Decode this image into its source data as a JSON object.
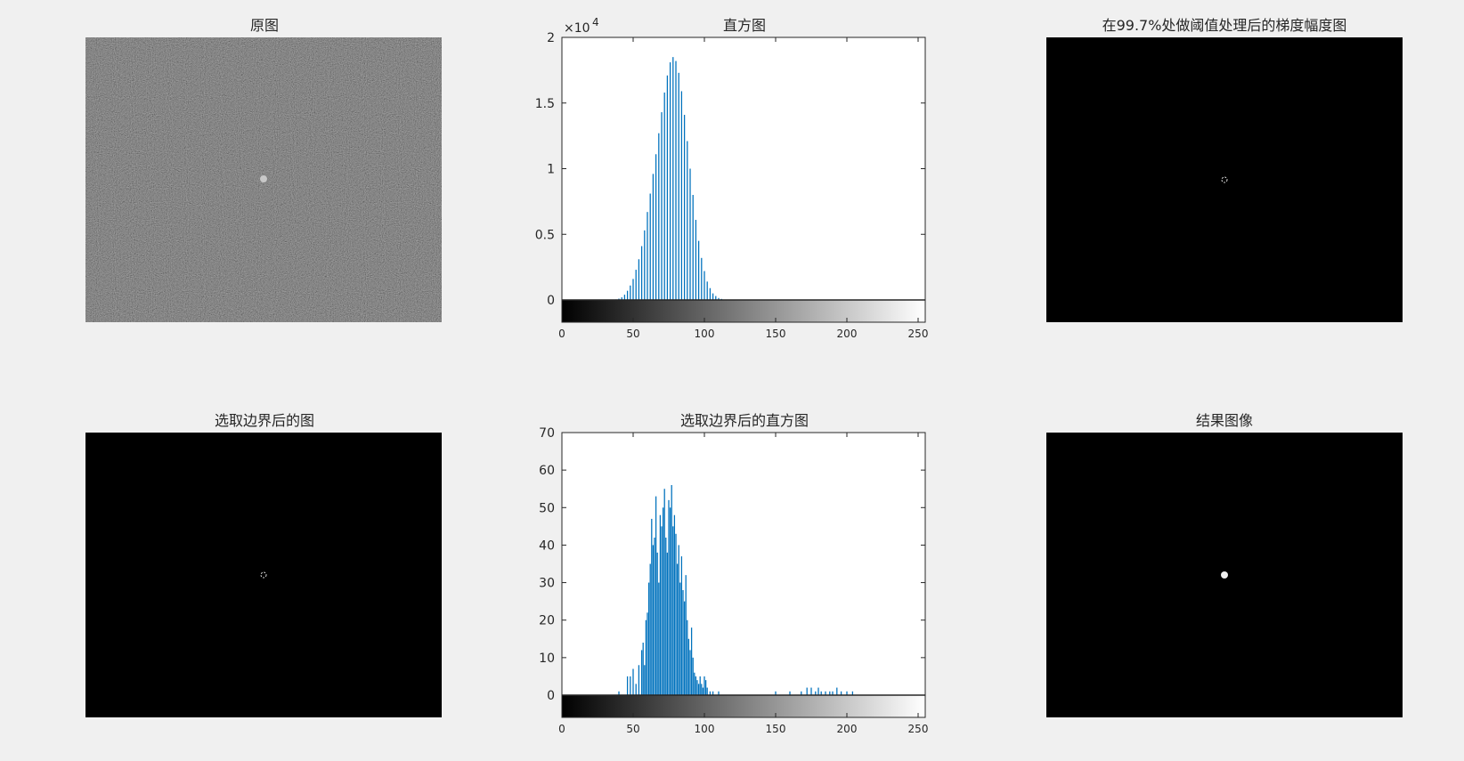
{
  "figure": {
    "background": "#f0f0f0",
    "bar_color": "#0072bd"
  },
  "panels": {
    "original": {
      "title": "原图"
    },
    "threshold": {
      "title": "在99.7%处做阈值处理后的梯度幅度图"
    },
    "boundary": {
      "title": "选取边界后的图"
    },
    "result": {
      "title": "结果图像"
    }
  },
  "chart_data": [
    {
      "type": "bar",
      "title": "直方图",
      "xlabel": "",
      "ylabel": "",
      "xlim": [
        0,
        255
      ],
      "ylim": [
        0,
        20000
      ],
      "exponent_label": "×10",
      "exponent_power": "4",
      "y_ticks": [
        {
          "value": 0,
          "label": "0"
        },
        {
          "value": 5000,
          "label": "0.5"
        },
        {
          "value": 10000,
          "label": "1"
        },
        {
          "value": 15000,
          "label": "1.5"
        },
        {
          "value": 20000,
          "label": "2"
        }
      ],
      "x_ticks": [
        {
          "value": 0,
          "label": "0"
        },
        {
          "value": 50,
          "label": "50"
        },
        {
          "value": 100,
          "label": "100"
        },
        {
          "value": 150,
          "label": "150"
        },
        {
          "value": 200,
          "label": "200"
        },
        {
          "value": 250,
          "label": "250"
        }
      ],
      "colorbar": "grayscale",
      "x": [
        38,
        40,
        42,
        44,
        46,
        48,
        50,
        52,
        54,
        56,
        58,
        60,
        62,
        64,
        66,
        68,
        70,
        72,
        74,
        76,
        78,
        80,
        82,
        84,
        86,
        88,
        90,
        92,
        94,
        96,
        98,
        100,
        102,
        104,
        106,
        108,
        110,
        112,
        114
      ],
      "values": [
        40,
        100,
        200,
        400,
        700,
        1100,
        1600,
        2300,
        3100,
        4100,
        5300,
        6700,
        8100,
        9600,
        11100,
        12700,
        14300,
        15800,
        17100,
        18100,
        18500,
        18200,
        17300,
        15900,
        14100,
        12100,
        10000,
        8000,
        6100,
        4500,
        3200,
        2200,
        1400,
        900,
        500,
        300,
        150,
        80,
        30
      ]
    },
    {
      "type": "bar",
      "title": "选取边界后的直方图",
      "xlabel": "",
      "ylabel": "",
      "xlim": [
        0,
        255
      ],
      "ylim": [
        0,
        70
      ],
      "y_ticks": [
        {
          "value": 0,
          "label": "0"
        },
        {
          "value": 10,
          "label": "10"
        },
        {
          "value": 20,
          "label": "20"
        },
        {
          "value": 30,
          "label": "30"
        },
        {
          "value": 40,
          "label": "40"
        },
        {
          "value": 50,
          "label": "50"
        },
        {
          "value": 60,
          "label": "60"
        },
        {
          "value": 70,
          "label": "70"
        }
      ],
      "x_ticks": [
        {
          "value": 0,
          "label": "0"
        },
        {
          "value": 50,
          "label": "50"
        },
        {
          "value": 100,
          "label": "100"
        },
        {
          "value": 150,
          "label": "150"
        },
        {
          "value": 200,
          "label": "200"
        },
        {
          "value": 250,
          "label": "250"
        }
      ],
      "colorbar": "grayscale",
      "x": [
        40,
        46,
        48,
        50,
        52,
        54,
        56,
        57,
        58,
        59,
        60,
        61,
        62,
        63,
        64,
        65,
        66,
        67,
        68,
        69,
        70,
        71,
        72,
        73,
        74,
        75,
        76,
        77,
        78,
        79,
        80,
        81,
        82,
        83,
        84,
        85,
        86,
        87,
        88,
        89,
        90,
        91,
        92,
        93,
        94,
        95,
        96,
        97,
        98,
        99,
        100,
        101,
        102,
        104,
        106,
        110,
        150,
        160,
        168,
        172,
        175,
        178,
        180,
        182,
        185,
        188,
        190,
        193,
        196,
        200,
        204
      ],
      "values": [
        1,
        5,
        5,
        7,
        3,
        8,
        12,
        14,
        8,
        20,
        22,
        30,
        35,
        47,
        40,
        42,
        53,
        38,
        30,
        48,
        45,
        50,
        55,
        42,
        38,
        52,
        50,
        56,
        45,
        48,
        43,
        35,
        40,
        30,
        37,
        28,
        25,
        32,
        20,
        15,
        12,
        18,
        10,
        6,
        5,
        4,
        3,
        5,
        3,
        2,
        5,
        4,
        2,
        1,
        1,
        1,
        1,
        1,
        1,
        2,
        2,
        1,
        2,
        1,
        1,
        1,
        1,
        2,
        1,
        1,
        1
      ]
    }
  ]
}
